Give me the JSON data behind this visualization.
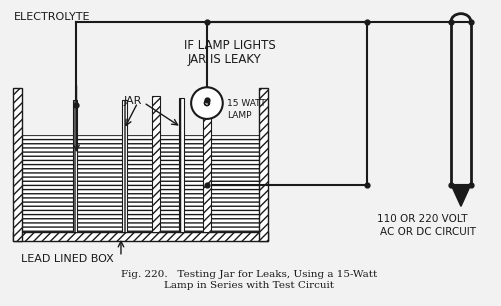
{
  "bg_color": "#f2f2f2",
  "line_color": "#1a1a1a",
  "label_electrolyte": "ELECTROLYTE",
  "label_jar": "JAR",
  "label_lead_lined_box": "LEAD LINED BOX",
  "label_if_lamp": "IF LAMP LIGHTS",
  "label_jar_leaky": "JAR IS LEAKY",
  "label_15watt": "15 WATT",
  "label_lamp": "LAMP",
  "label_voltage": "110 OR 220 VOLT",
  "label_circuit": "AC OR DC CIRCUIT",
  "title_line1": "Fig. 220.   Testing Jar for Leaks, Using a 15-Watt",
  "title_line2": "Lamp in Series with Test Circuit"
}
